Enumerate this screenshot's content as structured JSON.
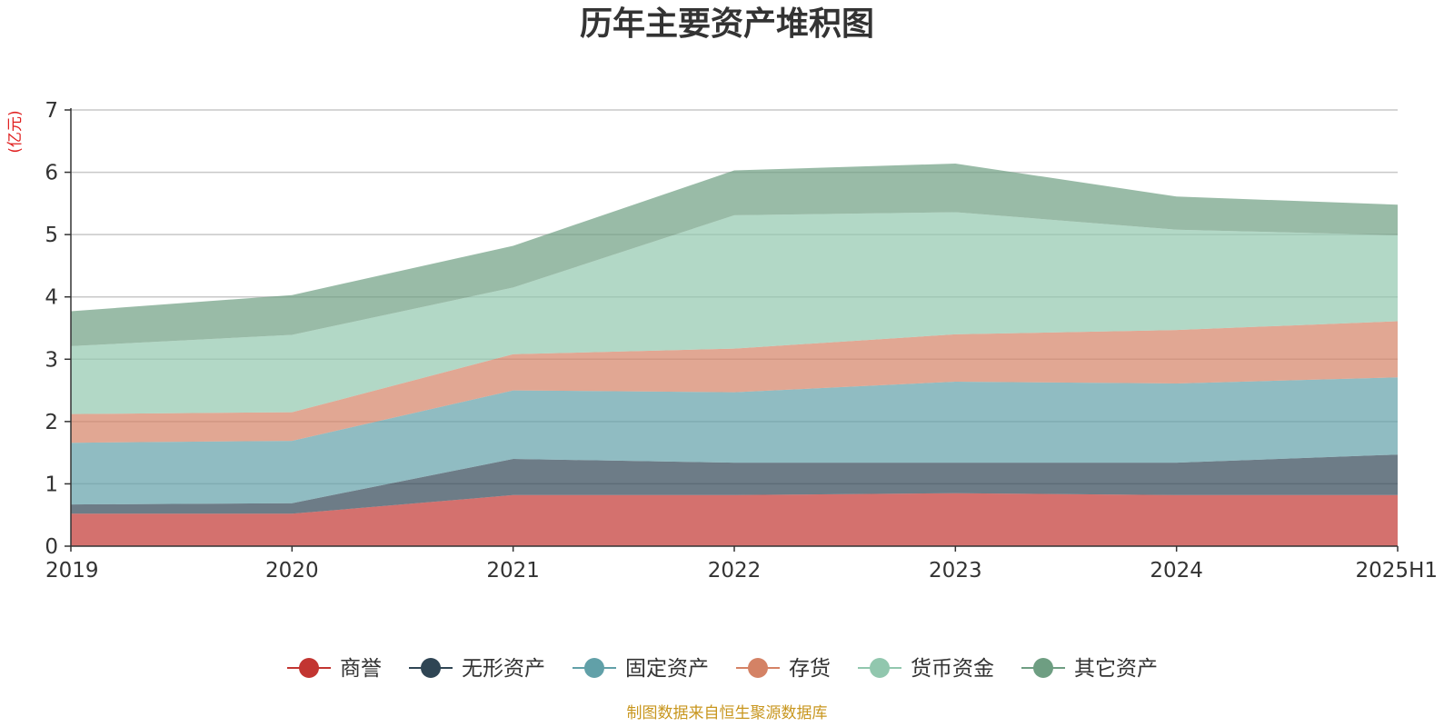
{
  "chart_data": {
    "type": "area",
    "stacked": true,
    "title": "历年主要资产堆积图",
    "y_unit": "(亿元)",
    "x": [
      "2019",
      "2020",
      "2021",
      "2022",
      "2023",
      "2024",
      "2025H1"
    ],
    "ylim": [
      0,
      7
    ],
    "yticks": [
      "0",
      "1",
      "2",
      "3",
      "4",
      "5",
      "6",
      "7"
    ],
    "grid": true,
    "legend_position": "bottom",
    "series": [
      {
        "name": "商誉",
        "color": "#c23531",
        "values": [
          0.52,
          0.52,
          0.82,
          0.82,
          0.85,
          0.82,
          0.82
        ]
      },
      {
        "name": "无形资产",
        "color": "#2f4554",
        "values": [
          0.15,
          0.17,
          0.58,
          0.52,
          0.49,
          0.52,
          0.65
        ]
      },
      {
        "name": "固定资产",
        "color": "#61a0a8",
        "values": [
          0.99,
          1.0,
          1.1,
          1.13,
          1.3,
          1.27,
          1.24
        ]
      },
      {
        "name": "存货",
        "color": "#d48265",
        "values": [
          0.46,
          0.46,
          0.58,
          0.7,
          0.76,
          0.86,
          0.9
        ]
      },
      {
        "name": "货币资金",
        "color": "#91c7ae",
        "values": [
          1.09,
          1.24,
          1.07,
          2.14,
          1.96,
          1.61,
          1.38
        ]
      },
      {
        "name": "其它资产",
        "color": "#6e9e82",
        "values": [
          0.56,
          0.64,
          0.67,
          0.72,
          0.78,
          0.53,
          0.49
        ]
      }
    ]
  },
  "footer": {
    "source": "制图数据来自恒生聚源数据库"
  }
}
